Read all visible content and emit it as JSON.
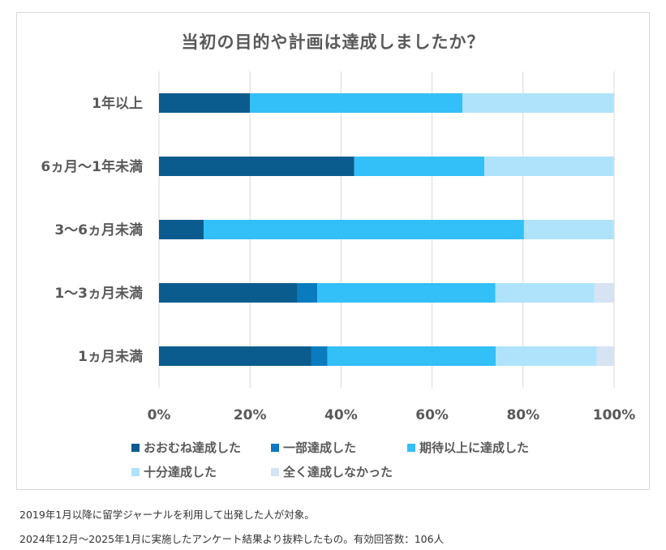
{
  "chart_data": {
    "type": "bar",
    "orientation": "horizontal",
    "stacked": true,
    "title": "当初の目的や計画は達成しましたか？",
    "categories": [
      "1年以上",
      "6ヵ月〜1年未満",
      "3〜6ヵ月未満",
      "1〜3ヵ月未満",
      "1ヵ月未満"
    ],
    "xlim": [
      0,
      100
    ],
    "xticks": [
      "0%",
      "20%",
      "40%",
      "60%",
      "80%",
      "100%"
    ],
    "grid": true,
    "legend_position": "bottom",
    "series": [
      {
        "name": "おおむね達成した",
        "color": "#0b5c8e",
        "values": [
          20.0,
          42.9,
          9.8,
          30.4,
          33.5
        ]
      },
      {
        "name": "一部達成した",
        "color": "#0a7bbf",
        "values": [
          0.0,
          0.0,
          0.0,
          4.4,
          3.5
        ]
      },
      {
        "name": "期待以上に達成した",
        "color": "#33bff7",
        "values": [
          46.7,
          28.6,
          70.4,
          39.1,
          37.0
        ]
      },
      {
        "name": "十分達成した",
        "color": "#aee3fb",
        "values": [
          33.3,
          28.5,
          19.8,
          21.8,
          22.2
        ]
      },
      {
        "name": "全く達成しなかった",
        "color": "#d6e3f3",
        "values": [
          0.0,
          0.0,
          0.0,
          4.3,
          3.8
        ]
      }
    ]
  },
  "footnotes": [
    "2019年1月以降に留学ジャーナルを利用して出発した人が対象。",
    "2024年12月〜2025年1月に実施したアンケート結果より抜粋したもの。有効回答数：106人"
  ]
}
